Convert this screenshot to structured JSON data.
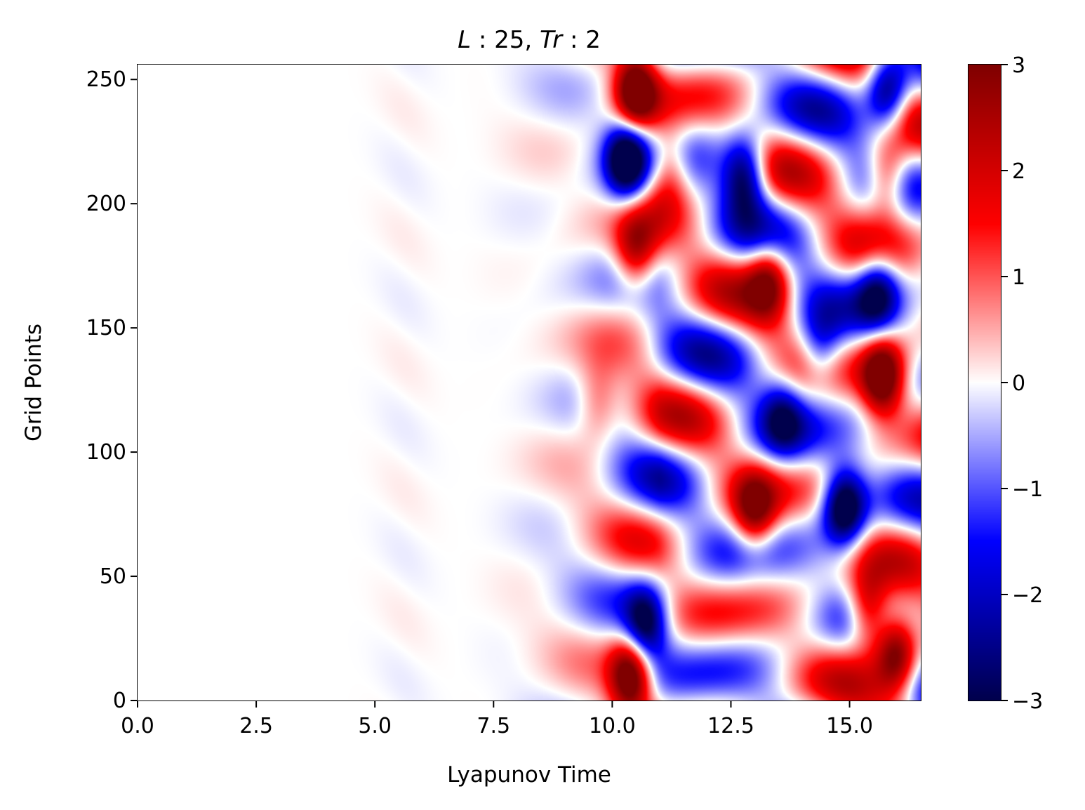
{
  "chart_data": {
    "type": "heatmap",
    "title_parts": {
      "a": "L",
      "b": " : 25, ",
      "c": "Tr",
      "d": " : 2"
    },
    "xlabel": "Lyapunov Time",
    "ylabel": "Grid Points",
    "xlim": [
      0,
      16.5
    ],
    "ylim": [
      0,
      256
    ],
    "xticks": [
      0.0,
      2.5,
      5.0,
      7.5,
      10.0,
      12.5,
      15.0
    ],
    "xtick_labels": [
      "0.0",
      "2.5",
      "5.0",
      "7.5",
      "10.0",
      "12.5",
      "15.0"
    ],
    "yticks": [
      0,
      50,
      100,
      150,
      200,
      250
    ],
    "ytick_labels": [
      "0",
      "50",
      "100",
      "150",
      "200",
      "250"
    ],
    "colorbar": {
      "range": [
        -3,
        3
      ],
      "ticks": [
        -3,
        -2,
        -1,
        0,
        1,
        2,
        3
      ],
      "tick_labels": [
        "−3",
        "−2",
        "−1",
        "0",
        "1",
        "2",
        "3"
      ],
      "colormap": "seismic",
      "colors": [
        "#00004d",
        "#0000ff",
        "#ffffff",
        "#ff0000",
        "#800000"
      ]
    },
    "features": [
      {
        "x": 10.5,
        "y": 245,
        "value": 3.0
      },
      {
        "x": 10.3,
        "y": 218,
        "value": -3.0
      },
      {
        "x": 11.2,
        "y": 215,
        "value": 1.5
      },
      {
        "x": 10.5,
        "y": 180,
        "value": 2.0
      },
      {
        "x": 12.8,
        "y": 212,
        "value": -2.5
      },
      {
        "x": 13.3,
        "y": 170,
        "value": 2.0
      },
      {
        "x": 13.0,
        "y": 75,
        "value": 2.0
      },
      {
        "x": 14.9,
        "y": 78,
        "value": -3.0
      },
      {
        "x": 15.7,
        "y": 130,
        "value": 3.0
      },
      {
        "x": 15.4,
        "y": 35,
        "value": 2.5
      },
      {
        "x": 16.0,
        "y": 20,
        "value": 3.0
      },
      {
        "x": 15.8,
        "y": 245,
        "value": -2.5
      },
      {
        "x": 15.8,
        "y": 210,
        "value": 2.0
      },
      {
        "x": 15.6,
        "y": 165,
        "value": -2.0
      },
      {
        "x": 14.4,
        "y": 140,
        "value": -1.5
      },
      {
        "x": 10.4,
        "y": 10,
        "value": 3.0
      },
      {
        "x": 10.7,
        "y": 30,
        "value": -2.5
      },
      {
        "x": 9.7,
        "y": 120,
        "value": 1.0
      },
      {
        "x": 13.6,
        "y": 115,
        "value": -1.5
      }
    ]
  }
}
